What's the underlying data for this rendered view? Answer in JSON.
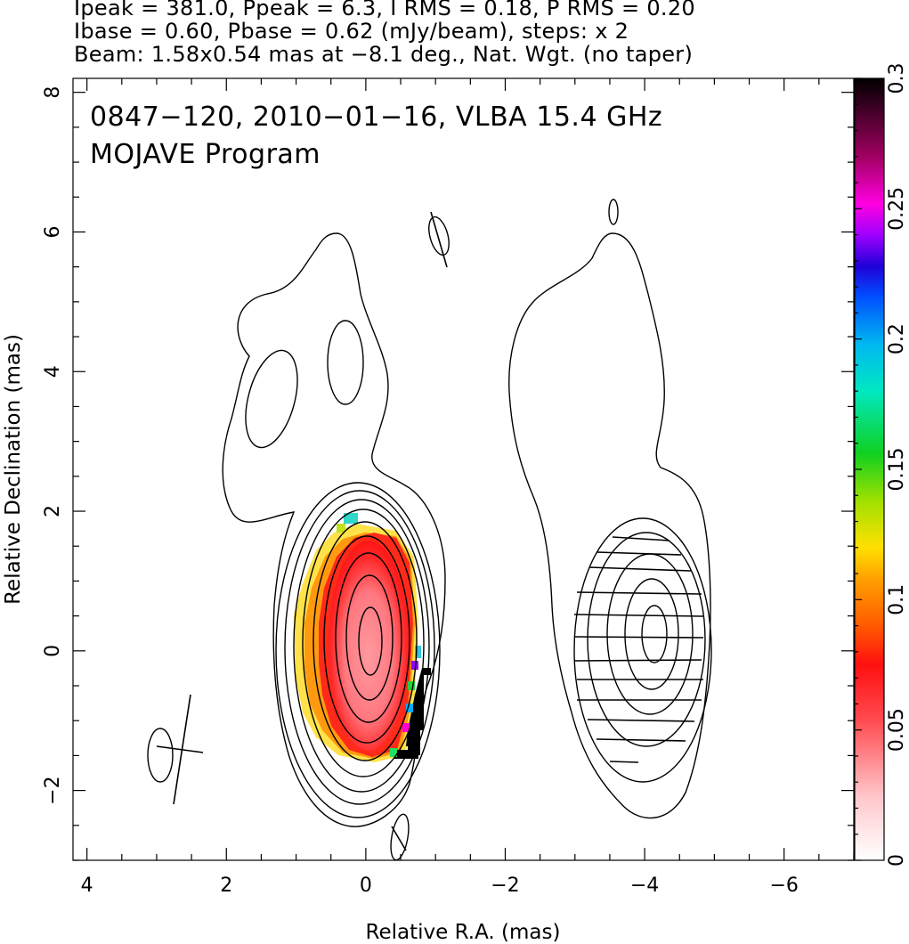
{
  "header": {
    "line1": "Ipeak = 381.0, Ppeak = 6.3, I RMS = 0.18, P RMS = 0.20",
    "line2": "Ibase = 0.60, Pbase = 0.62 (mJy/beam), steps: x 2",
    "line3": "Beam: 1.58x0.54 mas at −8.1 deg., Nat. Wgt. (no taper)"
  },
  "chart_data": [
    {
      "type": "heatmap",
      "title": "0847−120, 2010−01−16, VLBA 15.4 GHz",
      "subtitle": "MOJAVE Program",
      "xlabel": "Relative R.A. (mas)",
      "ylabel": "Relative Declination (mas)",
      "xlim": [
        4.2,
        -7.0
      ],
      "ylim": [
        -3.0,
        8.2
      ],
      "x_ticks": [
        4,
        2,
        0,
        -2,
        -4,
        -6
      ],
      "y_ticks": [
        -2,
        0,
        2,
        4,
        6,
        8
      ],
      "x_tick_labels": [
        "4",
        "2",
        "0",
        "−2",
        "−4",
        "−6"
      ],
      "y_tick_labels": [
        "−2",
        "0",
        "2",
        "4",
        "6",
        "8"
      ],
      "stokes_I": {
        "peak_mJy_per_beam": 381.0,
        "rms": 0.18,
        "base": 0.6,
        "step_factor": 2
      },
      "polarization": {
        "peak_mJy_per_beam": 6.3,
        "rms": 0.2,
        "base": 0.62
      },
      "beam": {
        "major_mas": 1.58,
        "minor_mas": 0.54,
        "pa_deg": -8.1,
        "weighting": "Nat. Wgt. (no taper)"
      },
      "fractional_polarization_color": {
        "range": [
          0,
          0.3
        ],
        "core_value": 0.03,
        "edge_values": [
          0.06,
          0.1,
          0.2,
          0.3
        ]
      },
      "grid": false
    },
    {
      "type": "heatmap",
      "role": "colorbar",
      "range": [
        0,
        0.3
      ],
      "ticks": [
        0,
        0.05,
        0.1,
        0.15,
        0.2,
        0.25,
        0.3
      ],
      "tick_labels": [
        "0",
        "0.05",
        "0.1",
        "0.15",
        "0.2",
        "0.25",
        "0.3"
      ]
    }
  ],
  "colors": {
    "axis": "#000000",
    "contour": "#000000",
    "background": "#ffffff"
  }
}
